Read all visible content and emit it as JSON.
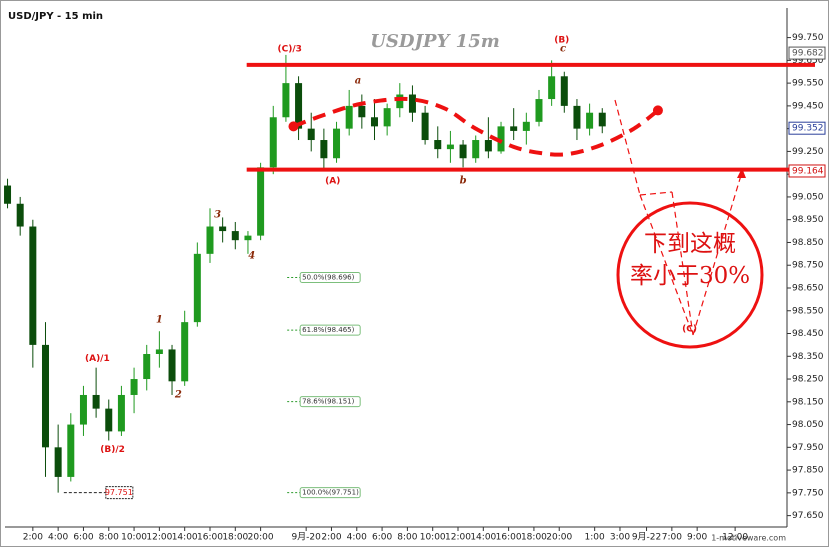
{
  "chart_data": {
    "type": "candlestick",
    "title": "USDJPY  15m",
    "subtitle": "USD/JPY - 15 min",
    "watermark": "1-motiveware.com",
    "up_color": "#1f9a1f",
    "down_color": "#0b4d0b",
    "x": [
      0,
      1,
      2,
      3,
      4,
      5,
      6,
      7,
      8,
      9,
      10,
      11,
      12,
      13,
      14,
      15,
      16,
      17,
      18,
      19,
      20,
      21,
      22,
      23,
      24,
      25,
      26,
      27,
      28,
      29,
      30,
      31,
      32,
      33,
      34,
      35,
      36,
      37,
      38,
      39,
      40,
      41,
      42,
      43,
      44,
      45,
      46,
      47
    ],
    "ohlc": [
      [
        99.1,
        99.13,
        99.0,
        99.02
      ],
      [
        99.02,
        99.05,
        98.88,
        98.92
      ],
      [
        98.92,
        98.95,
        98.3,
        98.4
      ],
      [
        98.4,
        98.5,
        97.82,
        97.95
      ],
      [
        97.95,
        98.05,
        97.751,
        97.82
      ],
      [
        97.82,
        98.1,
        97.8,
        98.05
      ],
      [
        98.05,
        98.22,
        98.0,
        98.18
      ],
      [
        98.18,
        98.3,
        98.08,
        98.12
      ],
      [
        98.12,
        98.16,
        97.98,
        98.02
      ],
      [
        98.02,
        98.22,
        98.0,
        98.18
      ],
      [
        98.18,
        98.3,
        98.1,
        98.25
      ],
      [
        98.25,
        98.4,
        98.2,
        98.36
      ],
      [
        98.36,
        98.46,
        98.3,
        98.38
      ],
      [
        98.38,
        98.4,
        98.18,
        98.24
      ],
      [
        98.24,
        98.55,
        98.22,
        98.5
      ],
      [
        98.5,
        98.85,
        98.48,
        98.8
      ],
      [
        98.8,
        99.0,
        98.76,
        98.92
      ],
      [
        98.92,
        98.96,
        98.85,
        98.9
      ],
      [
        98.9,
        98.94,
        98.82,
        98.86
      ],
      [
        98.86,
        98.9,
        98.8,
        98.88
      ],
      [
        98.88,
        99.2,
        98.86,
        99.18
      ],
      [
        99.18,
        99.45,
        99.15,
        99.4
      ],
      [
        99.4,
        99.674,
        99.38,
        99.55
      ],
      [
        99.55,
        99.58,
        99.3,
        99.35
      ],
      [
        99.35,
        99.42,
        99.25,
        99.3
      ],
      [
        99.3,
        99.35,
        99.17,
        99.22
      ],
      [
        99.22,
        99.38,
        99.2,
        99.35
      ],
      [
        99.35,
        99.52,
        99.32,
        99.45
      ],
      [
        99.45,
        99.5,
        99.35,
        99.4
      ],
      [
        99.4,
        99.48,
        99.3,
        99.36
      ],
      [
        99.36,
        99.46,
        99.32,
        99.44
      ],
      [
        99.44,
        99.55,
        99.4,
        99.5
      ],
      [
        99.5,
        99.54,
        99.38,
        99.42
      ],
      [
        99.42,
        99.45,
        99.28,
        99.3
      ],
      [
        99.3,
        99.36,
        99.22,
        99.26
      ],
      [
        99.26,
        99.34,
        99.2,
        99.28
      ],
      [
        99.28,
        99.3,
        99.18,
        99.22
      ],
      [
        99.22,
        99.32,
        99.2,
        99.3
      ],
      [
        99.3,
        99.4,
        99.22,
        99.25
      ],
      [
        99.25,
        99.38,
        99.24,
        99.36
      ],
      [
        99.36,
        99.44,
        99.3,
        99.34
      ],
      [
        99.34,
        99.42,
        99.28,
        99.38
      ],
      [
        99.38,
        99.52,
        99.36,
        99.48
      ],
      [
        99.48,
        99.65,
        99.45,
        99.58
      ],
      [
        99.58,
        99.6,
        99.42,
        99.45
      ],
      [
        99.45,
        99.48,
        99.3,
        99.35
      ],
      [
        99.35,
        99.46,
        99.32,
        99.42
      ],
      [
        99.42,
        99.44,
        99.33,
        99.36
      ]
    ],
    "xlim": [
      -0.2,
      61.6
    ],
    "ylim": [
      97.6,
      99.88
    ],
    "xticks": [
      {
        "value": 2,
        "label": "2:00"
      },
      {
        "value": 4,
        "label": "4:00"
      },
      {
        "value": 6,
        "label": "6:00"
      },
      {
        "value": 8,
        "label": "8:00"
      },
      {
        "value": 10,
        "label": "10:00"
      },
      {
        "value": 12,
        "label": "12:00"
      },
      {
        "value": 14,
        "label": "14:00"
      },
      {
        "value": 16,
        "label": "16:00"
      },
      {
        "value": 18,
        "label": "18:00"
      },
      {
        "value": 20,
        "label": "20:00"
      },
      {
        "value": 23.6,
        "label": "9月-20"
      },
      {
        "value": 25.6,
        "label": "2:00"
      },
      {
        "value": 27.6,
        "label": "4:00"
      },
      {
        "value": 29.6,
        "label": "6:00"
      },
      {
        "value": 31.6,
        "label": "8:00"
      },
      {
        "value": 33.6,
        "label": "10:00"
      },
      {
        "value": 35.6,
        "label": "12:00"
      },
      {
        "value": 37.6,
        "label": "14:00"
      },
      {
        "value": 39.6,
        "label": "16:00"
      },
      {
        "value": 41.6,
        "label": "18:00"
      },
      {
        "value": 43.6,
        "label": "20:00"
      },
      {
        "value": 46.4,
        "label": "1:00"
      },
      {
        "value": 48.4,
        "label": "3:00"
      },
      {
        "value": 50.5,
        "label": "9月-22"
      },
      {
        "value": 52.5,
        "label": "7:00"
      },
      {
        "value": 54.5,
        "label": "9:00"
      },
      {
        "value": 57.5,
        "label": "12:00"
      }
    ],
    "yticks": [
      {
        "value": 97.65,
        "label": "97.650"
      },
      {
        "value": 97.75,
        "label": "97.750"
      },
      {
        "value": 97.85,
        "label": "97.850"
      },
      {
        "value": 97.95,
        "label": "97.950"
      },
      {
        "value": 98.05,
        "label": "98.050"
      },
      {
        "value": 98.15,
        "label": "98.150"
      },
      {
        "value": 98.25,
        "label": "98.250"
      },
      {
        "value": 98.35,
        "label": "98.350"
      },
      {
        "value": 98.45,
        "label": "98.450"
      },
      {
        "value": 98.55,
        "label": "98.550"
      },
      {
        "value": 98.65,
        "label": "98.650"
      },
      {
        "value": 98.75,
        "label": "98.750"
      },
      {
        "value": 98.85,
        "label": "98.850"
      },
      {
        "value": 98.95,
        "label": "98.950"
      },
      {
        "value": 99.05,
        "label": "99.050"
      },
      {
        "value": 99.15,
        "label": "99.150"
      },
      {
        "value": 99.25,
        "label": "99.250"
      },
      {
        "value": 99.35,
        "label": "99.350"
      },
      {
        "value": 99.45,
        "label": "99.450"
      },
      {
        "value": 99.55,
        "label": "99.550"
      },
      {
        "value": 99.65,
        "label": "99.650"
      },
      {
        "value": 99.75,
        "label": "99.750"
      }
    ],
    "grid": false,
    "price_markers": [
      {
        "value": 99.682,
        "color": "#555555"
      },
      {
        "value": 99.352,
        "color": "#2a3f9a"
      },
      {
        "value": 99.164,
        "color": "#d01010"
      }
    ],
    "low_marker": {
      "x": 4.45,
      "value": 97.751
    },
    "fib_levels": [
      {
        "label": "50.0%(98.696)",
        "value": 98.696
      },
      {
        "label": "61.8%(98.465)",
        "value": 98.465
      },
      {
        "label": "78.6%(98.151)",
        "value": 98.151
      },
      {
        "label": "100.0%(97.751)",
        "value": 97.751
      }
    ],
    "fib_x": 22.1,
    "levels": [
      {
        "value": 99.63,
        "from": 18.9,
        "color": "#ee1111"
      },
      {
        "value": 99.17,
        "from": 18.9,
        "color": "#ee1111"
      }
    ],
    "projection": {
      "color": "#ee1111",
      "x": [
        22.6,
        25,
        28,
        31.6,
        34.5,
        37,
        40,
        42.5,
        44.5,
        47,
        49.5,
        51.4
      ],
      "y": [
        99.36,
        99.41,
        99.46,
        99.48,
        99.44,
        99.35,
        99.27,
        99.24,
        99.24,
        99.28,
        99.35,
        99.43
      ]
    },
    "annotations": [
      {
        "text": "(A)/1",
        "x": 7.1,
        "y": 98.34,
        "color": "#dd1111"
      },
      {
        "text": "(B)/2",
        "x": 8.3,
        "y": 97.94,
        "color": "#dd1111"
      },
      {
        "text": "1",
        "x": 12,
        "y": 98.51,
        "color": "#8b2a0a"
      },
      {
        "text": "2",
        "x": 13.5,
        "y": 98.18,
        "color": "#8b2a0a"
      },
      {
        "text": "3",
        "x": 16.6,
        "y": 98.97,
        "color": "#8b2a0a"
      },
      {
        "text": "4",
        "x": 19.3,
        "y": 98.79,
        "color": "#8b2a0a"
      },
      {
        "text": "(C)/3",
        "x": 22.3,
        "y": 99.7,
        "color": "#dd1111"
      },
      {
        "text": "(A)",
        "x": 25.7,
        "y": 99.12,
        "color": "#dd1111"
      },
      {
        "text": "a",
        "x": 27.7,
        "y": 99.56,
        "color": "#8b2a0a"
      },
      {
        "text": "b",
        "x": 36,
        "y": 99.12,
        "color": "#8b2a0a"
      },
      {
        "text": "c",
        "x": 43.9,
        "y": 99.7,
        "color": "#8b2a0a"
      },
      {
        "text": "(B)",
        "x": 43.8,
        "y": 99.74,
        "color": "#dd1111"
      },
      {
        "text": "(C)",
        "x": 53.9,
        "y": 98.47,
        "color": "#dd1111"
      }
    ],
    "note": [
      "下到这概",
      "率小于30%"
    ]
  }
}
